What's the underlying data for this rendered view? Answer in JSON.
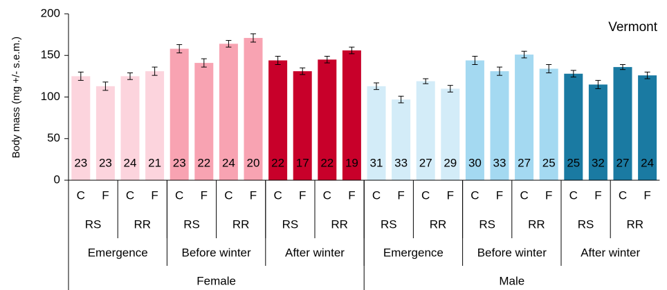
{
  "chart_data": {
    "type": "bar",
    "annotation": "Vermont",
    "y_label": "Body mass (mg +/- s.e.m.)",
    "categories": [
      "C",
      "F",
      "C",
      "F",
      "C",
      "F",
      "C",
      "F",
      "C",
      "F",
      "C",
      "F",
      "C",
      "F",
      "C",
      "F",
      "C",
      "F",
      "C",
      "F",
      "C",
      "F",
      "C",
      "F"
    ],
    "group_levels": [
      [
        "RS",
        "RR",
        "RS",
        "RR",
        "RS",
        "RR",
        "RS",
        "RR",
        "RS",
        "RR",
        "RS",
        "RR"
      ],
      [
        "Emergence",
        "Before winter",
        "After winter",
        "Emergence",
        "Before winter",
        "After winter"
      ],
      [
        "Female",
        "Male"
      ]
    ],
    "values": [
      125,
      113,
      125,
      131,
      158,
      141,
      164,
      171,
      144,
      131,
      145,
      156,
      113,
      97,
      119,
      110,
      144,
      131,
      151,
      134,
      128,
      115,
      136,
      126
    ],
    "errors": [
      5,
      5,
      4,
      5,
      5,
      5,
      4,
      5,
      5,
      4,
      4,
      4,
      4,
      4,
      3,
      4,
      5,
      5,
      4,
      5,
      4,
      5,
      3,
      4
    ],
    "n": [
      23,
      23,
      24,
      21,
      23,
      22,
      24,
      20,
      22,
      17,
      22,
      19,
      31,
      33,
      27,
      29,
      30,
      33,
      27,
      25,
      25,
      32,
      27,
      24
    ],
    "colors": [
      "#fcd4dd",
      "#fcd4dd",
      "#fcd4dd",
      "#fcd4dd",
      "#f8a3b2",
      "#f8a3b2",
      "#f8a3b2",
      "#f8a3b2",
      "#c8002a",
      "#c8002a",
      "#c8002a",
      "#c8002a",
      "#d3ecf8",
      "#d3ecf8",
      "#d3ecf8",
      "#d3ecf8",
      "#a4d9f1",
      "#a4d9f1",
      "#a4d9f1",
      "#a4d9f1",
      "#1a7aa2",
      "#1a7aa2",
      "#1a7aa2",
      "#1a7aa2"
    ],
    "error_color": "#555555",
    "ylim": [
      0,
      200
    ],
    "yticks": [
      0,
      50,
      100,
      150,
      200
    ]
  }
}
